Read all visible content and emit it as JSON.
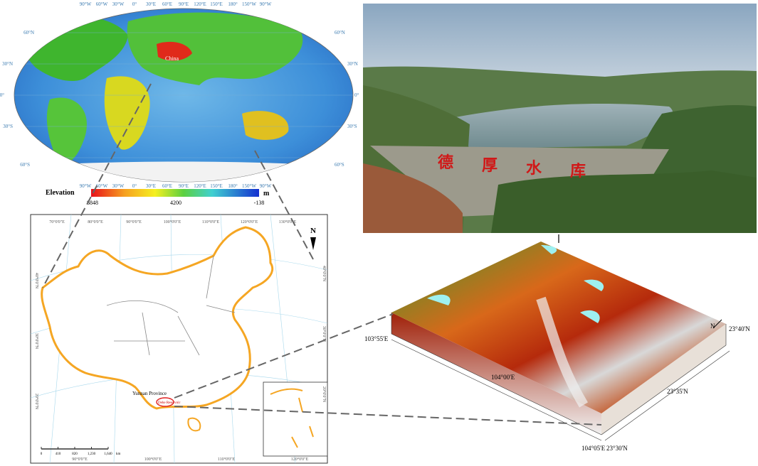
{
  "world_map": {
    "top_labels": [
      "90°W",
      "60°W",
      "30°W",
      "0°",
      "30°E",
      "60°E",
      "90°E",
      "120°E",
      "150°E",
      "180°",
      "150°W",
      "90°W"
    ],
    "bottom_labels": [
      "90°W",
      "60°W",
      "30°W",
      "0°",
      "30°E",
      "60°E",
      "90°E",
      "120°E",
      "150°E",
      "180°",
      "150°W",
      "90°W"
    ],
    "left_labels": [
      "60°N",
      "30°N",
      "0°",
      "30°S",
      "60°S"
    ],
    "right_labels": [
      "60°N",
      "30°N",
      "0°",
      "30°S",
      "60°S"
    ],
    "country_label": "China",
    "legend": {
      "title": "Elevation",
      "unit": "m",
      "labels": [
        "8848",
        "4200",
        "-138"
      ]
    }
  },
  "photo": {
    "sign_text": [
      "德",
      "厚",
      "水",
      "库"
    ]
  },
  "china_map": {
    "top_labels": [
      "70°0'0\"E",
      "80°0'0\"E",
      "90°0'0\"E",
      "100°0'0\"E",
      "110°0'0\"E",
      "120°0'0\"E",
      "130°0'0\"E"
    ],
    "bottom_labels": [
      "90°0'0\"E",
      "100°0'0\"E",
      "110°0'0\"E",
      "120°0'0\"E"
    ],
    "left_labels": [
      "40°0'0\"N",
      "30°0'0\"N",
      "20°0'0\"N"
    ],
    "right_labels": [
      "40°0'0\"N",
      "30°0'0\"N",
      "20°0'0\"N"
    ],
    "north": "N",
    "province_label": "Yunnan Province",
    "reservoir_label": "Dehe Reservoir",
    "scale_labels": [
      "0",
      "410",
      "820",
      "1,230",
      "1,640"
    ],
    "scale_unit": "km"
  },
  "dem": {
    "lon_labels": [
      "103°55'E",
      "104°00'E",
      "104°05'E"
    ],
    "lat_labels": [
      "23°40'N",
      "23°35'N",
      "23°30'N"
    ],
    "north": "N"
  }
}
